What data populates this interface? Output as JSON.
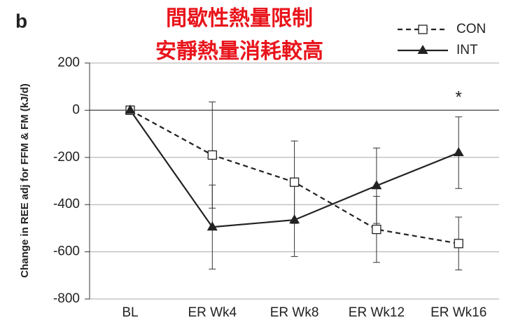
{
  "chart_data": {
    "type": "line",
    "panel_label": "b",
    "title": "間歇性熱量限制",
    "subtitle": "安靜熱量消耗較高",
    "y_label": "Change in REE adj for FFM & FM (kJ/d)",
    "categories": [
      "BL",
      "ER Wk4",
      "ER Wk8",
      "ER Wk12",
      "ER Wk16"
    ],
    "series": [
      {
        "name": "CON",
        "color": "#222222",
        "line_style": "dashed",
        "marker": "open-square",
        "values": [
          0,
          -190,
          -305,
          -505,
          -565
        ],
        "errors": [
          null,
          225,
          175,
          140,
          112
        ]
      },
      {
        "name": "INT",
        "color": "#222222",
        "line_style": "solid",
        "marker": "filled-triangle",
        "values": [
          0,
          -495,
          -465,
          -320,
          -180
        ],
        "errors": [
          null,
          178,
          155,
          160,
          152
        ]
      }
    ],
    "annotation": "*",
    "ylim": [
      -800,
      200
    ],
    "yticks": [
      -800,
      -600,
      -400,
      -200,
      0,
      200
    ],
    "grid": true,
    "legend": "top-right"
  }
}
